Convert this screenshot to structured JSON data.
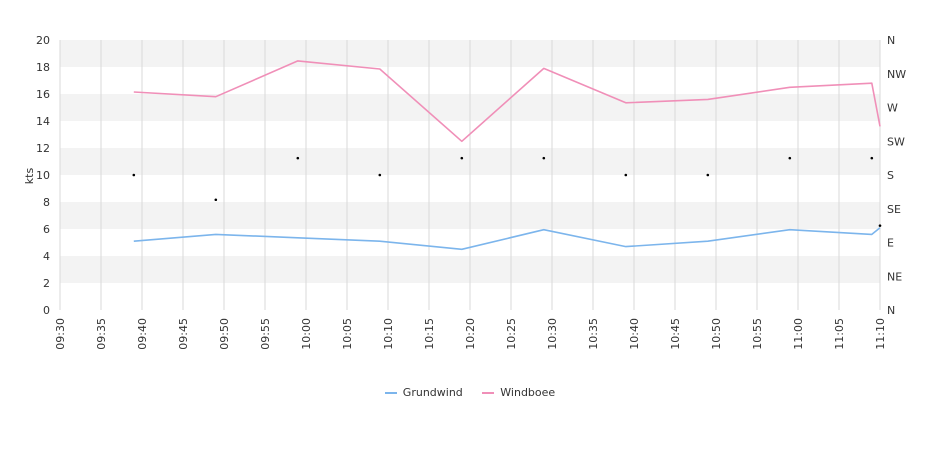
{
  "chart_data": {
    "type": "line",
    "ylabel": "kts",
    "ylim": [
      0,
      20
    ],
    "yticks": [
      0,
      2,
      4,
      6,
      8,
      10,
      12,
      14,
      16,
      18,
      20
    ],
    "direction_labels": [
      "N",
      "NE",
      "E",
      "SE",
      "S",
      "SW",
      "W",
      "NW",
      "N"
    ],
    "x_ticks": [
      "09:30",
      "09:35",
      "09:40",
      "09:45",
      "09:50",
      "09:55",
      "10:00",
      "10:05",
      "10:10",
      "10:15",
      "10:20",
      "10:25",
      "10:30",
      "10:35",
      "10:40",
      "10:45",
      "10:50",
      "10:55",
      "11:00",
      "11:05",
      "11:10"
    ],
    "x_range": [
      "09:30",
      "11:10"
    ],
    "series": [
      {
        "name": "Grundwind",
        "color": "#7cb5ec",
        "x": [
          "09:39",
          "09:49",
          "09:59",
          "10:09",
          "10:19",
          "10:29",
          "10:39",
          "10:49",
          "10:59",
          "11:09",
          "11:10"
        ],
        "values": [
          5.1,
          5.6,
          5.35,
          5.1,
          4.5,
          5.95,
          4.7,
          5.1,
          5.95,
          5.6,
          6.1
        ]
      },
      {
        "name": "Windboee",
        "color": "#f08fb8",
        "x": [
          "09:39",
          "09:49",
          "09:59",
          "10:09",
          "10:19",
          "10:29",
          "10:39",
          "10:49",
          "10:59",
          "11:09",
          "11:10"
        ],
        "values": [
          16.15,
          15.8,
          18.45,
          17.85,
          12.5,
          17.9,
          15.35,
          15.6,
          16.5,
          16.8,
          13.6
        ]
      }
    ],
    "direction_points": {
      "x": [
        "09:39",
        "09:49",
        "09:59",
        "10:09",
        "10:19",
        "10:29",
        "10:39",
        "10:49",
        "10:59",
        "11:09",
        "11:10"
      ],
      "degrees": [
        180,
        147,
        202.5,
        180,
        202.5,
        202.5,
        180,
        180,
        202.5,
        202.5,
        112.5
      ]
    },
    "grid": true,
    "legend_position": "bottom"
  }
}
